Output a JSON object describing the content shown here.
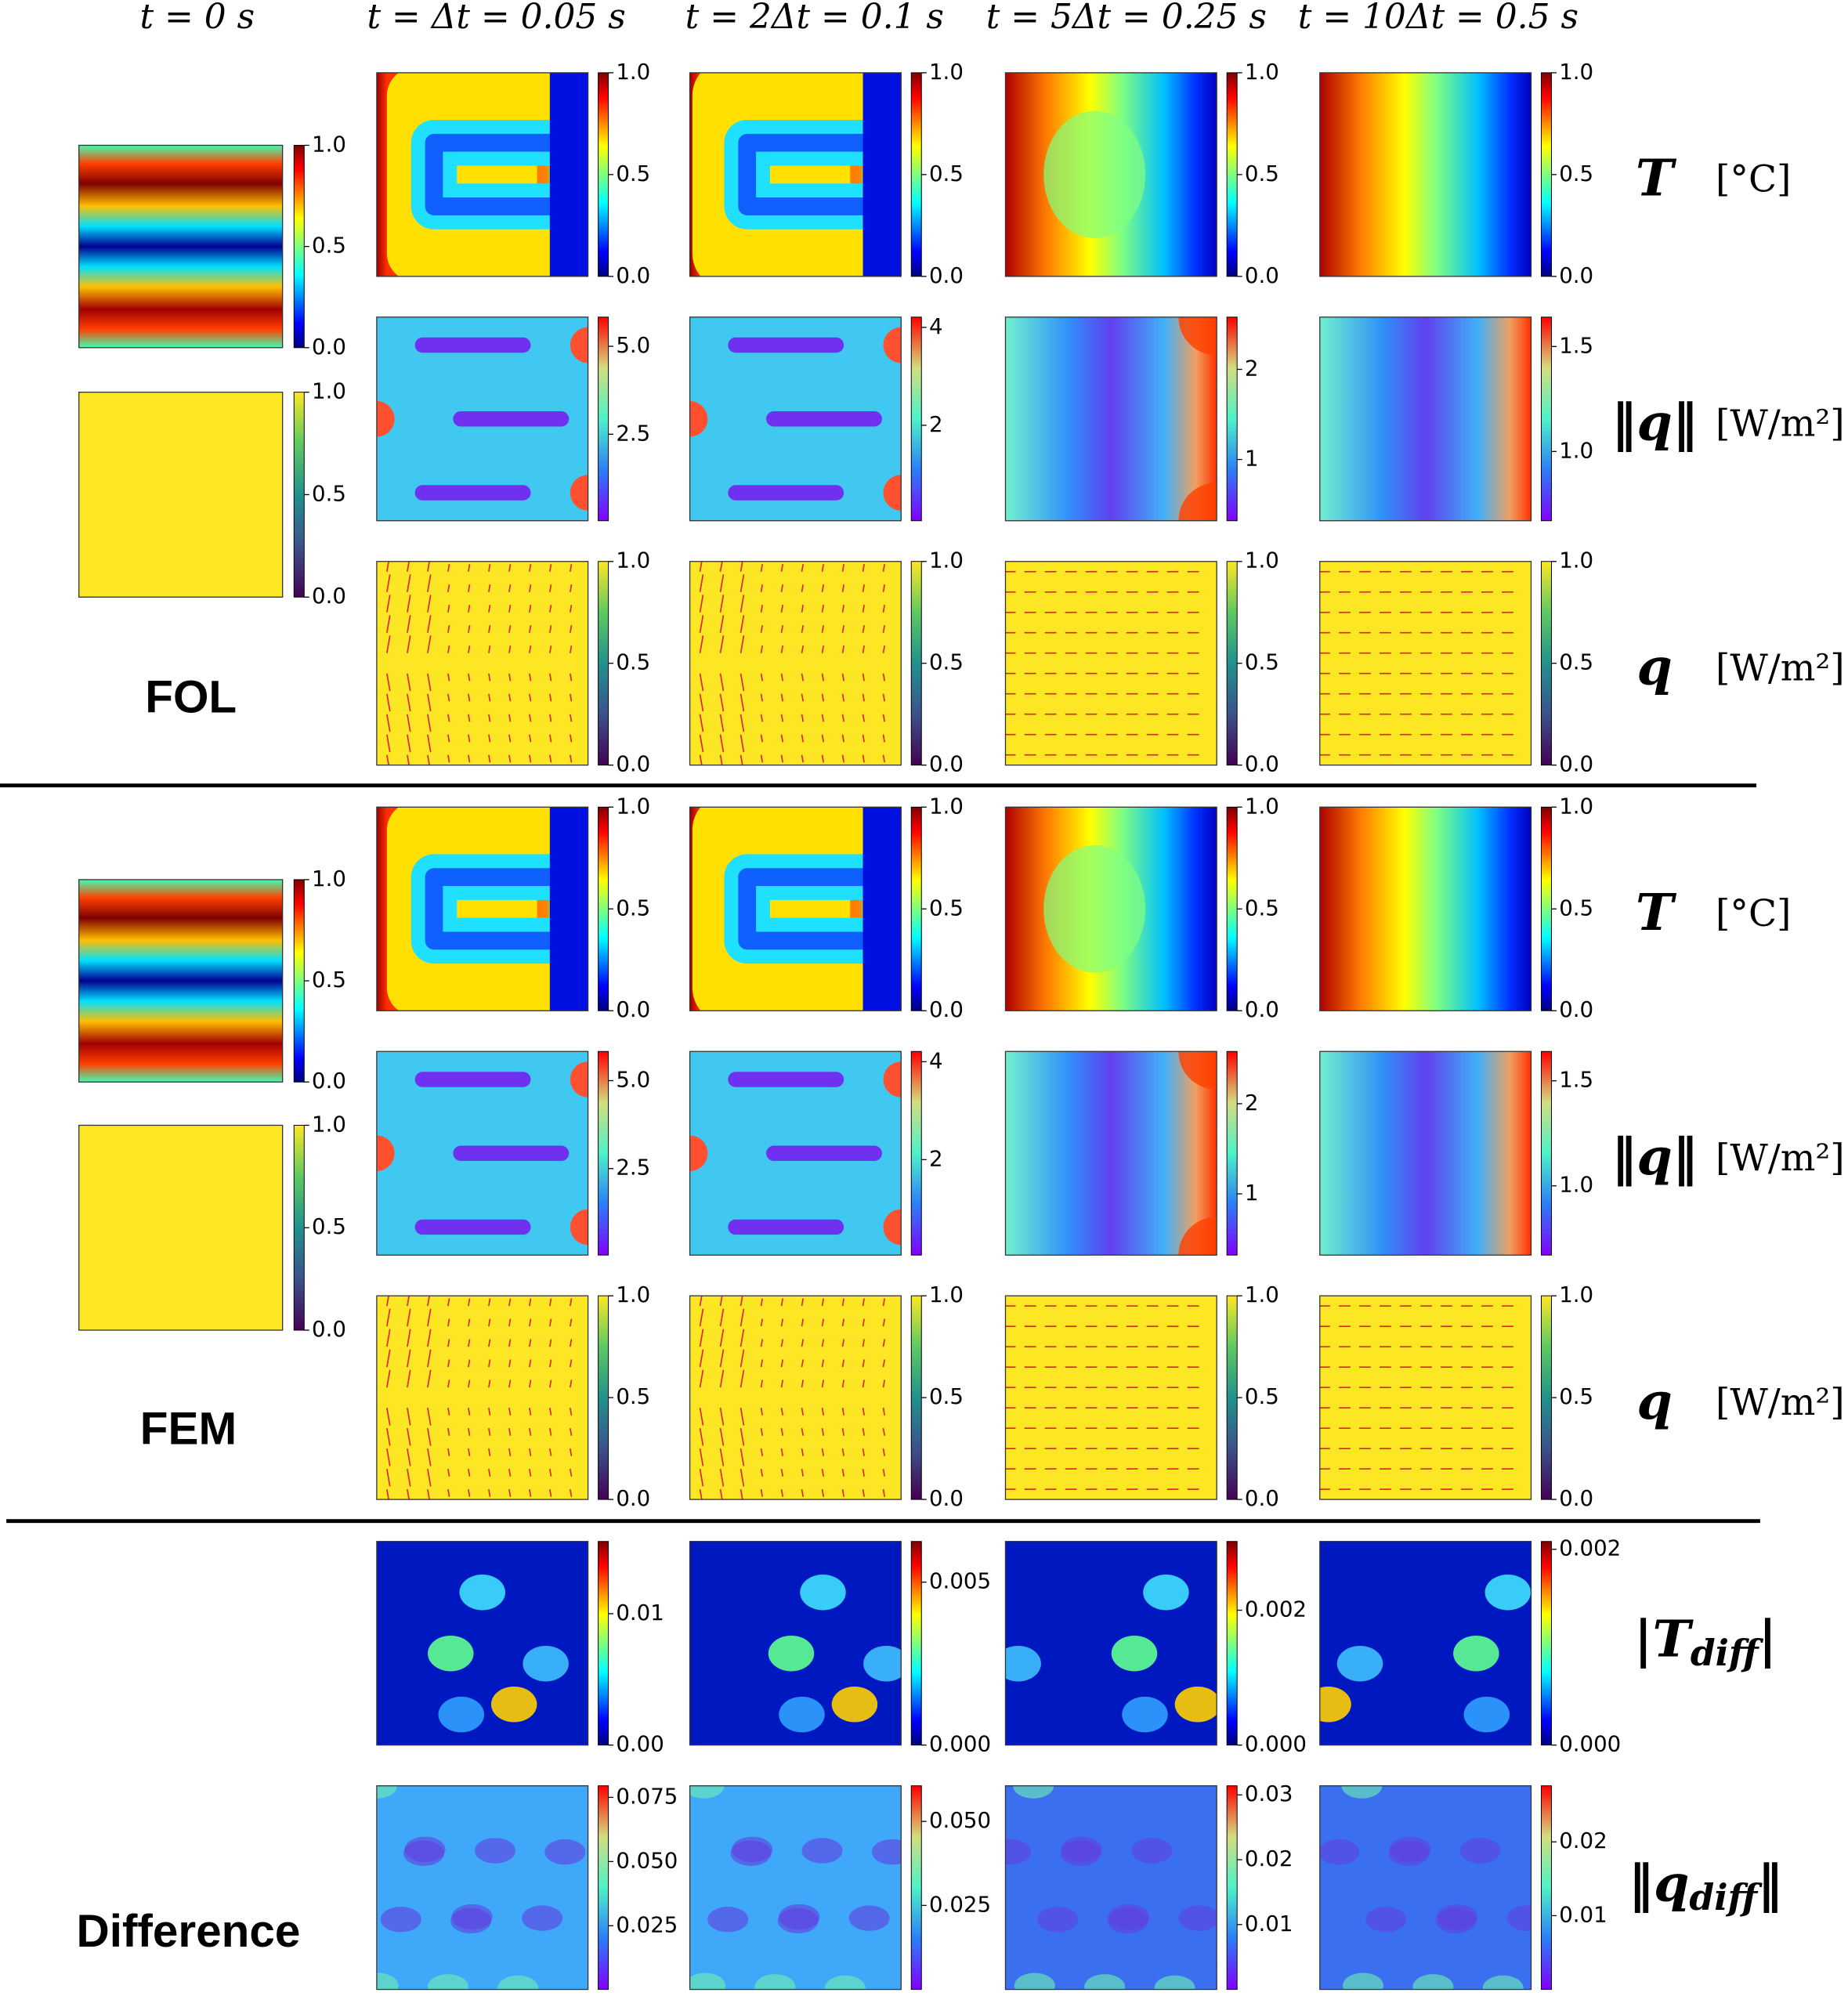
{
  "headers": [
    "t = 0 s",
    "t = Δt = 0.05 s",
    "t = 2Δt = 0.1 s",
    "t = 5Δt = 0.25 s",
    "t = 10Δt = 0.5 s"
  ],
  "sections": [
    "FOL",
    "FEM",
    "Difference"
  ],
  "row_labels": [
    {
      "symbol": "T",
      "unit": "[°C]"
    },
    {
      "symbol": "‖q‖",
      "unit": "[W/m²]"
    },
    {
      "symbol": "q",
      "unit": "[W/m²]"
    },
    {
      "left": "|T",
      "sub": "diff",
      "right": "|"
    },
    {
      "left": "‖q",
      "sub": "diff",
      "right": "‖"
    }
  ],
  "colorbars": {
    "FOL": {
      "initial": [
        {
          "lim": [
            0,
            1
          ],
          "ticks": [
            {
              "value": 0,
              "label": "0.0"
            },
            0.5,
            {
              "value": 1,
              "label": "1.0"
            }
          ]
        },
        {
          "lim": [
            0,
            1
          ],
          "ticks": [
            {
              "value": 0,
              "label": "0.0"
            },
            0.5,
            {
              "value": 1,
              "label": "1.0"
            }
          ]
        }
      ],
      "rows": [
        [
          {
            "lim": [
              0,
              1
            ],
            "ticks": [
              {
                "value": 0,
                "label": "0.0"
              },
              0.5,
              {
                "value": 1,
                "label": "1.0"
              }
            ]
          },
          {
            "lim": [
              0,
              1
            ],
            "ticks": [
              {
                "value": 0,
                "label": "0.0"
              },
              0.5,
              {
                "value": 1,
                "label": "1.0"
              }
            ]
          },
          {
            "lim": [
              0,
              1
            ],
            "ticks": [
              {
                "value": 0,
                "label": "0.0"
              },
              0.5,
              {
                "value": 1,
                "label": "1.0"
              }
            ]
          },
          {
            "lim": [
              0,
              1
            ],
            "ticks": [
              {
                "value": 0,
                "label": "0.0"
              },
              0.5,
              {
                "value": 1,
                "label": "1.0"
              }
            ]
          }
        ],
        [
          {
            "lim": [
              0.04,
              5.83
            ],
            "ticks": [
              2.5,
              {
                "value": 5,
                "label": "5.0"
              }
            ]
          },
          {
            "lim": [
              0.05,
              4.21
            ],
            "ticks": [
              2,
              4
            ]
          },
          {
            "lim": [
              0.32,
              2.58
            ],
            "ticks": [
              1,
              2
            ]
          },
          {
            "lim": [
              0.67,
              1.64
            ],
            "ticks": [
              {
                "value": 1,
                "label": "1.0"
              },
              1.5
            ]
          }
        ],
        [
          {
            "lim": [
              0,
              1
            ],
            "ticks": [
              {
                "value": 0,
                "label": "0.0"
              },
              0.5,
              {
                "value": 1,
                "label": "1.0"
              }
            ]
          },
          {
            "lim": [
              0,
              1
            ],
            "ticks": [
              {
                "value": 0,
                "label": "0.0"
              },
              0.5,
              {
                "value": 1,
                "label": "1.0"
              }
            ]
          },
          {
            "lim": [
              0,
              1
            ],
            "ticks": [
              {
                "value": 0,
                "label": "0.0"
              },
              0.5,
              {
                "value": 1,
                "label": "1.0"
              }
            ]
          },
          {
            "lim": [
              0,
              1
            ],
            "ticks": [
              {
                "value": 0,
                "label": "0.0"
              },
              0.5,
              {
                "value": 1,
                "label": "1.0"
              }
            ]
          }
        ]
      ]
    },
    "FEM": {
      "initial": [
        {
          "lim": [
            0,
            1
          ],
          "ticks": [
            {
              "value": 0,
              "label": "0.0"
            },
            0.5,
            {
              "value": 1,
              "label": "1.0"
            }
          ]
        },
        {
          "lim": [
            0,
            1
          ],
          "ticks": [
            {
              "value": 0,
              "label": "0.0"
            },
            0.5,
            {
              "value": 1,
              "label": "1.0"
            }
          ]
        }
      ],
      "rows": [
        [
          {
            "lim": [
              0,
              1
            ],
            "ticks": [
              {
                "value": 0,
                "label": "0.0"
              },
              0.5,
              {
                "value": 1,
                "label": "1.0"
              }
            ]
          },
          {
            "lim": [
              0,
              1
            ],
            "ticks": [
              {
                "value": 0,
                "label": "0.0"
              },
              0.5,
              {
                "value": 1,
                "label": "1.0"
              }
            ]
          },
          {
            "lim": [
              0,
              1
            ],
            "ticks": [
              {
                "value": 0,
                "label": "0.0"
              },
              0.5,
              {
                "value": 1,
                "label": "1.0"
              }
            ]
          },
          {
            "lim": [
              0,
              1
            ],
            "ticks": [
              {
                "value": 0,
                "label": "0.0"
              },
              0.5,
              {
                "value": 1,
                "label": "1.0"
              }
            ]
          }
        ],
        [
          {
            "lim": [
              0.04,
              5.83
            ],
            "ticks": [
              2.5,
              {
                "value": 5,
                "label": "5.0"
              }
            ]
          },
          {
            "lim": [
              0.05,
              4.21
            ],
            "ticks": [
              2,
              4
            ]
          },
          {
            "lim": [
              0.32,
              2.58
            ],
            "ticks": [
              1,
              2
            ]
          },
          {
            "lim": [
              0.67,
              1.64
            ],
            "ticks": [
              {
                "value": 1,
                "label": "1.0"
              },
              1.5
            ]
          }
        ],
        [
          {
            "lim": [
              0,
              1
            ],
            "ticks": [
              {
                "value": 0,
                "label": "0.0"
              },
              0.5,
              {
                "value": 1,
                "label": "1.0"
              }
            ]
          },
          {
            "lim": [
              0,
              1
            ],
            "ticks": [
              {
                "value": 0,
                "label": "0.0"
              },
              0.5,
              {
                "value": 1,
                "label": "1.0"
              }
            ]
          },
          {
            "lim": [
              0,
              1
            ],
            "ticks": [
              {
                "value": 0,
                "label": "0.0"
              },
              0.5,
              {
                "value": 1,
                "label": "1.0"
              }
            ]
          },
          {
            "lim": [
              0,
              1
            ],
            "ticks": [
              {
                "value": 0,
                "label": "0.0"
              },
              0.5,
              {
                "value": 1,
                "label": "1.0"
              }
            ]
          }
        ]
      ]
    },
    "Difference": {
      "rows": [
        [
          {
            "lim": [
              0,
              0.0155
            ],
            "ticks": [
              {
                "value": 0,
                "label": "0.00"
              },
              0.01
            ]
          },
          {
            "lim": [
              0,
              0.00625
            ],
            "ticks": [
              {
                "value": 0,
                "label": "0.000"
              },
              0.005
            ]
          },
          {
            "lim": [
              0,
              0.00302
            ],
            "ticks": [
              {
                "value": 0,
                "label": "0.000"
              },
              0.002
            ]
          },
          {
            "lim": [
              0,
              0.00208
            ],
            "ticks": [
              {
                "value": 0,
                "label": "0.000"
              },
              0.002
            ]
          }
        ],
        [
          {
            "lim": [
              0.0002,
              0.0795
            ],
            "ticks": [
              0.025,
              {
                "value": 0.05,
                "label": "0.050"
              },
              0.075
            ]
          },
          {
            "lim": [
              0,
              0.0606
            ],
            "ticks": [
              0.025,
              {
                "value": 0.05,
                "label": "0.050"
              }
            ]
          },
          {
            "lim": [
              0,
              0.0314
            ],
            "ticks": [
              0.01,
              0.02,
              0.03
            ]
          },
          {
            "lim": [
              0,
              0.0276
            ],
            "ticks": [
              0.01,
              0.02
            ]
          }
        ]
      ]
    }
  }
}
